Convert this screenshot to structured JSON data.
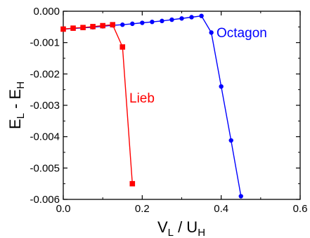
{
  "chart_data": {
    "type": "line",
    "xlabel": {
      "main": "V",
      "sub": "L",
      "mid": " / U",
      "sub2": "H"
    },
    "ylabel": {
      "main": "E",
      "sub": "L",
      "mid": " - E",
      "sub2": "H"
    },
    "xlim": [
      0.0,
      0.6
    ],
    "ylim": [
      -0.006,
      0.0
    ],
    "xticks": [
      0.0,
      0.2,
      0.4,
      0.6
    ],
    "xtick_labels": [
      "0.0",
      "0.2",
      "0.4",
      "0.6"
    ],
    "yticks": [
      0.0,
      -0.001,
      -0.002,
      -0.003,
      -0.004,
      -0.005,
      -0.006
    ],
    "ytick_labels": [
      "0.000",
      "-0.001",
      "-0.002",
      "-0.003",
      "-0.004",
      "-0.005",
      "-0.006"
    ],
    "grid": false,
    "series": [
      {
        "name": "Octagon",
        "color": "#0000ff",
        "marker": "circle",
        "x": [
          0.0,
          0.025,
          0.05,
          0.075,
          0.1,
          0.125,
          0.15,
          0.175,
          0.2,
          0.225,
          0.25,
          0.275,
          0.3,
          0.325,
          0.35,
          0.375,
          0.4,
          0.425,
          0.45
        ],
        "y": [
          -0.00057,
          -0.00055,
          -0.00053,
          -0.00051,
          -0.00048,
          -0.00045,
          -0.00043,
          -0.0004,
          -0.00037,
          -0.00034,
          -0.00031,
          -0.00027,
          -0.00023,
          -0.00019,
          -0.00015,
          -0.00068,
          -0.0024,
          -0.00412,
          -0.0059
        ]
      },
      {
        "name": "Lieb",
        "color": "#ff0000",
        "marker": "square",
        "x": [
          0.0,
          0.025,
          0.05,
          0.075,
          0.1,
          0.125,
          0.15,
          0.175
        ],
        "y": [
          -0.00057,
          -0.00054,
          -0.00052,
          -0.00049,
          -0.00046,
          -0.00043,
          -0.00114,
          -0.0055
        ]
      }
    ]
  }
}
